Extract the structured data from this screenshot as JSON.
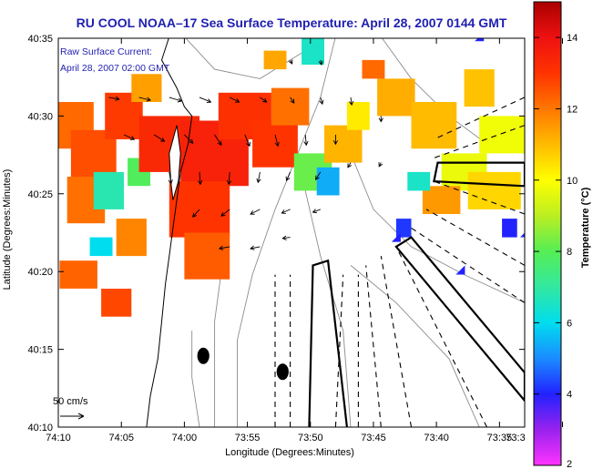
{
  "chart_data": {
    "type": "heatmap",
    "title": "RU COOL  NOAA–17  Sea Surface Temperature:  April 28, 2007 0144 GMT",
    "annotation": {
      "line1": "Raw Surface Current:",
      "line2": "April 28, 2007 02:00 GMT"
    },
    "xlabel": "Longitude (Degrees:Minutes)",
    "ylabel": "Latitude (Degrees:Minutes)",
    "colorbar_label": "Temperature (°C)",
    "xlim": [
      -74.1667,
      -73.55
    ],
    "ylim": [
      40.1667,
      40.5833
    ],
    "x_ticks": [
      {
        "value": -74.1667,
        "label": "74:10"
      },
      {
        "value": -74.0833,
        "label": "74:05"
      },
      {
        "value": -74.0,
        "label": "74:00"
      },
      {
        "value": -73.9167,
        "label": "73:55"
      },
      {
        "value": -73.8333,
        "label": "73:50"
      },
      {
        "value": -73.75,
        "label": "73:45"
      },
      {
        "value": -73.6667,
        "label": "73:40"
      },
      {
        "value": -73.5833,
        "label": "73:35"
      },
      {
        "value": -73.5,
        "label": "73:3"
      }
    ],
    "y_ticks": [
      {
        "value": 40.1667,
        "label": "40:10"
      },
      {
        "value": 40.25,
        "label": "40:15"
      },
      {
        "value": 40.3333,
        "label": "40:20"
      },
      {
        "value": 40.4167,
        "label": "40:25"
      },
      {
        "value": 40.5,
        "label": "40:30"
      },
      {
        "value": 40.5833,
        "label": "40:35"
      }
    ],
    "colorbar": {
      "min": 2,
      "max": 15,
      "ticks": [
        2,
        4,
        6,
        8,
        10,
        12,
        14
      ],
      "stops": [
        {
          "value": 2,
          "color": "#ff33ff"
        },
        {
          "value": 3,
          "color": "#9922ee"
        },
        {
          "value": 4,
          "color": "#2222ff"
        },
        {
          "value": 5,
          "color": "#1a8cff"
        },
        {
          "value": 6,
          "color": "#00ddee"
        },
        {
          "value": 7,
          "color": "#33e8a0"
        },
        {
          "value": 8,
          "color": "#55ee55"
        },
        {
          "value": 9,
          "color": "#bbee22"
        },
        {
          "value": 10,
          "color": "#ffff00"
        },
        {
          "value": 11,
          "color": "#ffbb00"
        },
        {
          "value": 12,
          "color": "#ff7700"
        },
        {
          "value": 13,
          "color": "#ff3300"
        },
        {
          "value": 14,
          "color": "#ee1111"
        },
        {
          "value": 15,
          "color": "#aa0000"
        }
      ]
    },
    "scale_arrow": {
      "label": "50 cm/s",
      "speed": 50
    },
    "sst_patches": [
      {
        "lon": -74.15,
        "lat": 40.49,
        "w": 0.06,
        "h": 0.05,
        "temp": 12.2
      },
      {
        "lon": -74.12,
        "lat": 40.46,
        "w": 0.06,
        "h": 0.05,
        "temp": 12.6
      },
      {
        "lon": -74.08,
        "lat": 40.5,
        "w": 0.05,
        "h": 0.05,
        "temp": 12.9
      },
      {
        "lon": -74.05,
        "lat": 40.53,
        "w": 0.04,
        "h": 0.03,
        "temp": 11.4
      },
      {
        "lon": -74.13,
        "lat": 40.41,
        "w": 0.05,
        "h": 0.05,
        "temp": 12.1
      },
      {
        "lon": -74.1,
        "lat": 40.42,
        "w": 0.04,
        "h": 0.04,
        "temp": 6.8
      },
      {
        "lon": -74.06,
        "lat": 40.44,
        "w": 0.03,
        "h": 0.03,
        "temp": 7.9
      },
      {
        "lon": -74.14,
        "lat": 40.33,
        "w": 0.05,
        "h": 0.03,
        "temp": 12.3
      },
      {
        "lon": -74.07,
        "lat": 40.37,
        "w": 0.04,
        "h": 0.04,
        "temp": 11.8
      },
      {
        "lon": -74.11,
        "lat": 40.36,
        "w": 0.03,
        "h": 0.02,
        "temp": 6.0
      },
      {
        "lon": -74.09,
        "lat": 40.3,
        "w": 0.04,
        "h": 0.03,
        "temp": 12.7
      },
      {
        "lon": -74.02,
        "lat": 40.47,
        "w": 0.08,
        "h": 0.06,
        "temp": 13.3
      },
      {
        "lon": -73.96,
        "lat": 40.46,
        "w": 0.09,
        "h": 0.07,
        "temp": 13.5
      },
      {
        "lon": -73.92,
        "lat": 40.5,
        "w": 0.07,
        "h": 0.05,
        "temp": 13.1
      },
      {
        "lon": -73.98,
        "lat": 40.4,
        "w": 0.08,
        "h": 0.06,
        "temp": 13.0
      },
      {
        "lon": -73.97,
        "lat": 40.35,
        "w": 0.06,
        "h": 0.05,
        "temp": 12.4
      },
      {
        "lon": -73.88,
        "lat": 40.47,
        "w": 0.06,
        "h": 0.05,
        "temp": 13.0
      },
      {
        "lon": -73.86,
        "lat": 40.51,
        "w": 0.05,
        "h": 0.04,
        "temp": 12.1
      },
      {
        "lon": -73.83,
        "lat": 40.44,
        "w": 0.05,
        "h": 0.04,
        "temp": 8.2
      },
      {
        "lon": -73.81,
        "lat": 40.43,
        "w": 0.03,
        "h": 0.03,
        "temp": 5.4
      },
      {
        "lon": -73.79,
        "lat": 40.47,
        "w": 0.05,
        "h": 0.04,
        "temp": 11.1
      },
      {
        "lon": -73.77,
        "lat": 40.5,
        "w": 0.03,
        "h": 0.03,
        "temp": 10.3
      },
      {
        "lon": -73.72,
        "lat": 40.52,
        "w": 0.05,
        "h": 0.04,
        "temp": 11.2
      },
      {
        "lon": -73.67,
        "lat": 40.49,
        "w": 0.06,
        "h": 0.05,
        "temp": 11.0
      },
      {
        "lon": -73.63,
        "lat": 40.44,
        "w": 0.06,
        "h": 0.04,
        "temp": 9.7
      },
      {
        "lon": -73.66,
        "lat": 40.41,
        "w": 0.05,
        "h": 0.03,
        "temp": 11.5
      },
      {
        "lon": -73.59,
        "lat": 40.42,
        "w": 0.07,
        "h": 0.04,
        "temp": 10.6
      },
      {
        "lon": -73.58,
        "lat": 40.48,
        "w": 0.06,
        "h": 0.04,
        "temp": 9.8
      },
      {
        "lon": -73.61,
        "lat": 40.53,
        "w": 0.04,
        "h": 0.04,
        "temp": 10.9
      },
      {
        "lon": -73.69,
        "lat": 40.43,
        "w": 0.03,
        "h": 0.02,
        "temp": 6.5
      },
      {
        "lon": -73.88,
        "lat": 40.56,
        "w": 0.03,
        "h": 0.02,
        "temp": 11.3
      },
      {
        "lon": -73.83,
        "lat": 40.57,
        "w": 0.03,
        "h": 0.03,
        "temp": 6.5
      },
      {
        "lon": -73.75,
        "lat": 40.55,
        "w": 0.03,
        "h": 0.02,
        "temp": 12.2
      },
      {
        "lon": -73.57,
        "lat": 40.38,
        "w": 0.02,
        "h": 0.02,
        "temp": 4.0
      },
      {
        "lon": -73.71,
        "lat": 40.38,
        "w": 0.02,
        "h": 0.02,
        "temp": 4.2
      }
    ],
    "current_vectors": [
      {
        "lon": -74.1,
        "lat": 40.52,
        "u": 22,
        "v": -4
      },
      {
        "lon": -74.06,
        "lat": 40.52,
        "u": 24,
        "v": -6
      },
      {
        "lon": -74.02,
        "lat": 40.52,
        "u": 26,
        "v": -8
      },
      {
        "lon": -73.98,
        "lat": 40.52,
        "u": 24,
        "v": -10
      },
      {
        "lon": -73.94,
        "lat": 40.52,
        "u": 20,
        "v": -10
      },
      {
        "lon": -73.9,
        "lat": 40.52,
        "u": 14,
        "v": -10
      },
      {
        "lon": -73.86,
        "lat": 40.52,
        "u": 8,
        "v": -12
      },
      {
        "lon": -73.82,
        "lat": 40.52,
        "u": 4,
        "v": -14
      },
      {
        "lon": -73.78,
        "lat": 40.52,
        "u": 2,
        "v": -16
      },
      {
        "lon": -74.08,
        "lat": 40.48,
        "u": 22,
        "v": -10
      },
      {
        "lon": -74.04,
        "lat": 40.48,
        "u": 22,
        "v": -14
      },
      {
        "lon": -74.0,
        "lat": 40.48,
        "u": 18,
        "v": -18
      },
      {
        "lon": -73.96,
        "lat": 40.48,
        "u": 14,
        "v": -22
      },
      {
        "lon": -73.92,
        "lat": 40.48,
        "u": 10,
        "v": -24
      },
      {
        "lon": -73.88,
        "lat": 40.48,
        "u": 6,
        "v": -24
      },
      {
        "lon": -73.84,
        "lat": 40.48,
        "u": 2,
        "v": -22
      },
      {
        "lon": -73.8,
        "lat": 40.48,
        "u": 0,
        "v": -20
      },
      {
        "lon": -74.02,
        "lat": 40.44,
        "u": 4,
        "v": -24
      },
      {
        "lon": -73.98,
        "lat": 40.44,
        "u": 2,
        "v": -26
      },
      {
        "lon": -73.94,
        "lat": 40.44,
        "u": -2,
        "v": -26
      },
      {
        "lon": -73.9,
        "lat": 40.44,
        "u": -4,
        "v": -22
      },
      {
        "lon": -73.86,
        "lat": 40.44,
        "u": -8,
        "v": -18
      },
      {
        "lon": -73.82,
        "lat": 40.44,
        "u": -10,
        "v": -16
      },
      {
        "lon": -73.98,
        "lat": 40.4,
        "u": -14,
        "v": -16
      },
      {
        "lon": -73.94,
        "lat": 40.4,
        "u": -18,
        "v": -14
      },
      {
        "lon": -73.9,
        "lat": 40.4,
        "u": -20,
        "v": -10
      },
      {
        "lon": -73.86,
        "lat": 40.4,
        "u": -18,
        "v": -8
      },
      {
        "lon": -73.82,
        "lat": 40.4,
        "u": -16,
        "v": -6
      },
      {
        "lon": -73.94,
        "lat": 40.36,
        "u": -22,
        "v": -4
      },
      {
        "lon": -73.9,
        "lat": 40.36,
        "u": -20,
        "v": -4
      },
      {
        "lon": -73.86,
        "lat": 40.37,
        "u": -16,
        "v": -2
      },
      {
        "lon": -73.78,
        "lat": 40.45,
        "u": -6,
        "v": -10
      },
      {
        "lon": -73.74,
        "lat": 40.45,
        "u": -4,
        "v": -8
      },
      {
        "lon": -73.74,
        "lat": 40.5,
        "u": 0,
        "v": -12
      },
      {
        "lon": -73.82,
        "lat": 40.56,
        "u": 2,
        "v": -10
      },
      {
        "lon": -73.86,
        "lat": 40.56,
        "u": 4,
        "v": -8
      }
    ],
    "coastline": [
      [
        -74.02,
        40.585
      ],
      [
        -74.03,
        40.56
      ],
      [
        -74.01,
        40.53
      ],
      [
        -74.0,
        40.51
      ],
      [
        -73.99,
        40.5
      ],
      [
        -73.995,
        40.47
      ],
      [
        -74.005,
        40.44
      ],
      [
        -74.01,
        40.41
      ],
      [
        -74.015,
        40.38
      ],
      [
        -74.02,
        40.35
      ],
      [
        -74.025,
        40.32
      ],
      [
        -74.03,
        40.28
      ],
      [
        -74.035,
        40.24
      ],
      [
        -74.045,
        40.2
      ],
      [
        -74.05,
        40.1667
      ]
    ],
    "sandy_hook": [
      [
        -74.01,
        40.49
      ],
      [
        -74.02,
        40.46
      ],
      [
        -74.018,
        40.43
      ],
      [
        -74.015,
        40.41
      ],
      [
        -74.008,
        40.43
      ],
      [
        -74.005,
        40.46
      ],
      [
        -74.01,
        40.49
      ]
    ],
    "cable_corridor": [
      [
        -73.835,
        40.1667
      ],
      [
        -73.83,
        40.34
      ],
      [
        -73.81,
        40.345
      ],
      [
        -73.785,
        40.1667
      ]
    ],
    "box_upper": [
      [
        -73.665,
        40.45
      ],
      [
        -73.55,
        40.45
      ],
      [
        -73.55,
        40.425
      ],
      [
        -73.67,
        40.43
      ]
    ],
    "box_lower": [
      [
        -73.7,
        40.37
      ],
      [
        -73.55,
        40.225
      ],
      [
        -73.55,
        40.195
      ],
      [
        -73.72,
        40.36
      ]
    ],
    "shipping_lanes": [
      [
        [
          -73.88,
          40.1667
        ],
        [
          -73.88,
          40.33
        ]
      ],
      [
        [
          -73.86,
          40.1667
        ],
        [
          -73.86,
          40.33
        ]
      ],
      [
        [
          -73.8,
          40.1667
        ],
        [
          -73.79,
          40.33
        ]
      ],
      [
        [
          -73.77,
          40.1667
        ],
        [
          -73.77,
          40.33
        ]
      ],
      [
        [
          -73.74,
          40.1667
        ],
        [
          -73.76,
          40.34
        ]
      ],
      [
        [
          -73.7,
          40.1667
        ],
        [
          -73.74,
          40.35
        ]
      ],
      [
        [
          -73.6,
          40.1667
        ],
        [
          -73.72,
          40.36
        ]
      ],
      [
        [
          -73.55,
          40.3
        ],
        [
          -73.7,
          40.38
        ]
      ],
      [
        [
          -73.55,
          40.34
        ],
        [
          -73.68,
          40.4
        ]
      ],
      [
        [
          -73.55,
          40.395
        ],
        [
          -73.67,
          40.43
        ]
      ],
      [
        [
          -73.55,
          40.49
        ],
        [
          -73.67,
          40.455
        ]
      ],
      [
        [
          -73.55,
          40.52
        ],
        [
          -73.67,
          40.475
        ]
      ]
    ],
    "contours": [
      [
        [
          -73.93,
          40.1667
        ],
        [
          -73.93,
          40.26
        ],
        [
          -73.91,
          40.33
        ],
        [
          -73.88,
          40.4
        ],
        [
          -73.85,
          40.46
        ],
        [
          -73.82,
          40.52
        ],
        [
          -73.8,
          40.585
        ]
      ],
      [
        [
          -73.96,
          40.1667
        ],
        [
          -73.96,
          40.28
        ],
        [
          -73.95,
          40.34
        ]
      ],
      [
        [
          -73.78,
          40.1667
        ],
        [
          -73.79,
          40.27
        ],
        [
          -73.82,
          40.35
        ],
        [
          -73.84,
          40.42
        ]
      ],
      [
        [
          -73.55,
          40.3
        ],
        [
          -73.63,
          40.33
        ],
        [
          -73.7,
          40.36
        ],
        [
          -73.75,
          40.4
        ],
        [
          -73.78,
          40.46
        ]
      ],
      [
        [
          -73.55,
          40.46
        ],
        [
          -73.6,
          40.47
        ],
        [
          -73.65,
          40.5
        ],
        [
          -73.7,
          40.54
        ],
        [
          -73.74,
          40.585
        ]
      ],
      [
        [
          -73.61,
          40.1667
        ],
        [
          -73.65,
          40.24
        ],
        [
          -73.72,
          40.3
        ],
        [
          -73.78,
          40.34
        ]
      ],
      [
        [
          -74.0,
          40.585
        ],
        [
          -73.96,
          40.55
        ],
        [
          -73.9,
          40.54
        ],
        [
          -73.84,
          40.57
        ]
      ],
      [
        [
          -73.98,
          40.1667
        ],
        [
          -73.99,
          40.22
        ],
        [
          -73.99,
          40.27
        ]
      ]
    ],
    "ellipses": [
      {
        "lon": -73.975,
        "lat": 40.243,
        "rx": 0.008,
        "ry": 0.008
      },
      {
        "lon": -73.87,
        "lat": 40.226,
        "rx": 0.008,
        "ry": 0.008
      }
    ],
    "triangle_markers": [
      {
        "lon": -73.61,
        "lat": 40.585
      },
      {
        "lon": -73.72,
        "lat": 40.37
      },
      {
        "lon": -73.635,
        "lat": 40.335
      },
      {
        "lon": -73.55,
        "lat": 40.375
      }
    ]
  }
}
